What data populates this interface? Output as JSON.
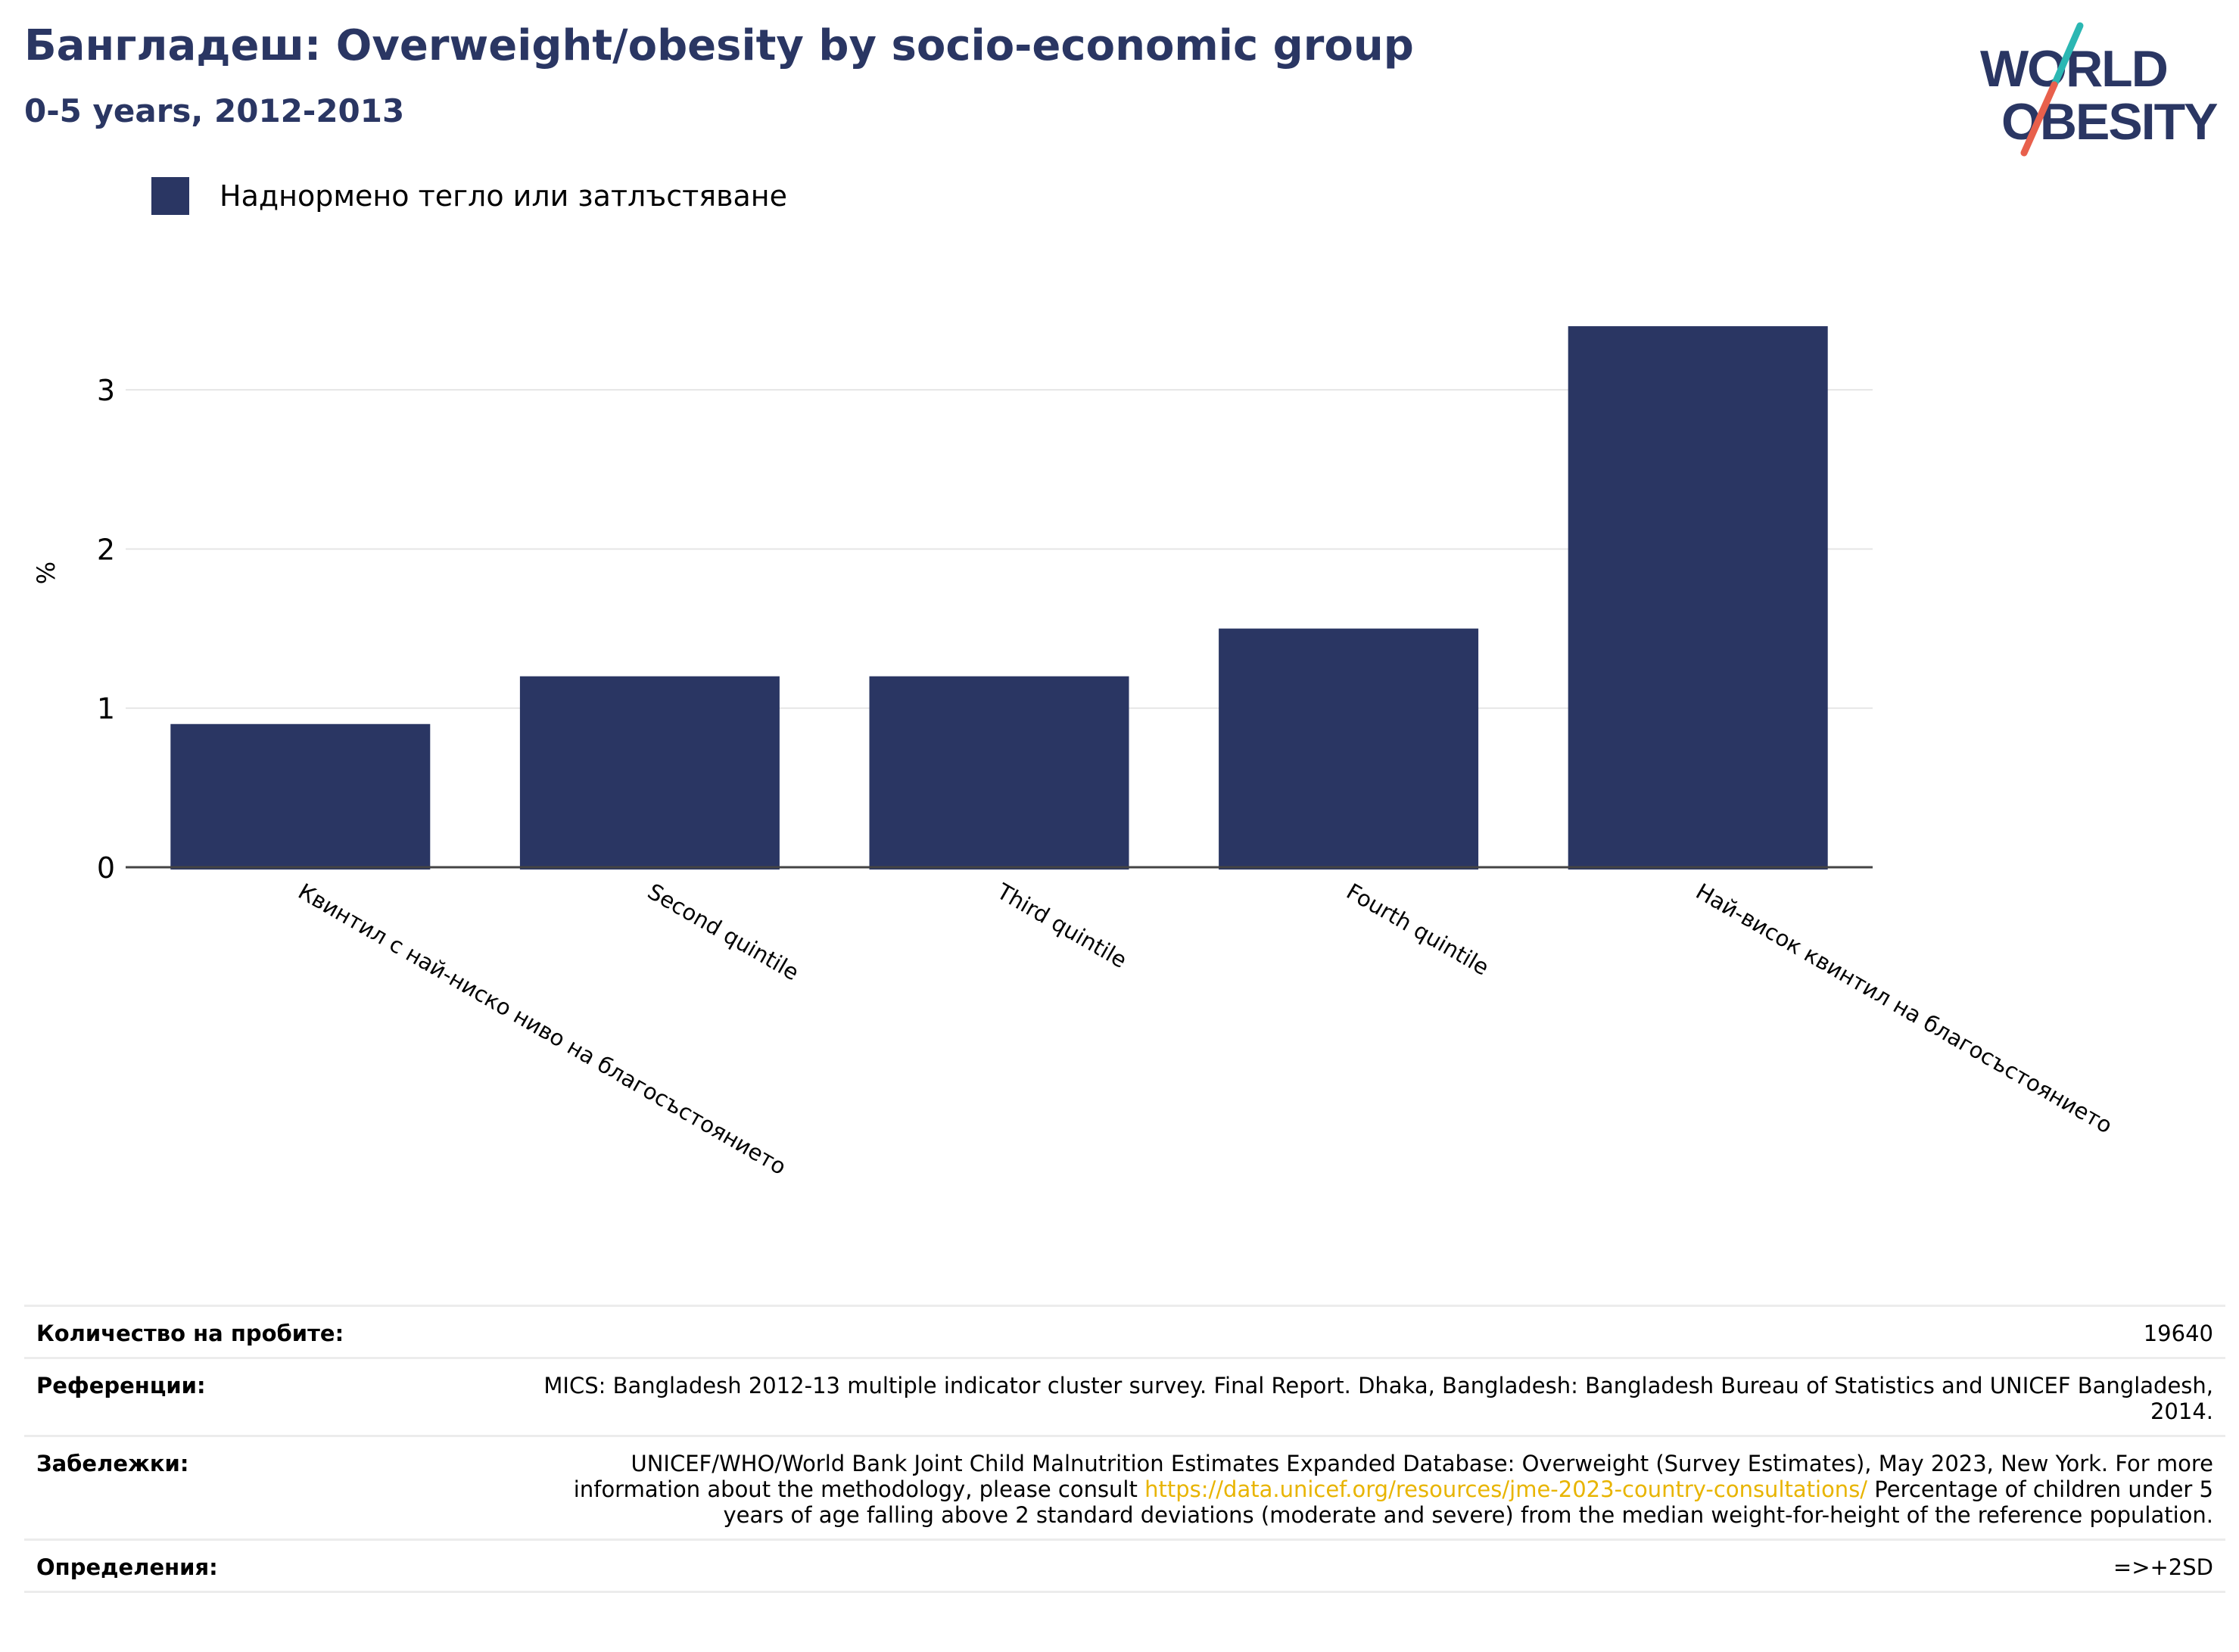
{
  "header": {
    "title": "Бангладеш: Overweight/obesity by socio-economic group",
    "subtitle": "0-5 years, 2012-2013"
  },
  "logo": {
    "line1": "WORLD",
    "line2": "OBESITY",
    "colors": {
      "text": "#2a3663",
      "slash_top": "#2bb7b3",
      "slash_bottom": "#e8604c"
    }
  },
  "legend": {
    "label": "Наднормено тегло или затлъстяване",
    "color": "#2a3663"
  },
  "chart_data": {
    "type": "bar",
    "categories": [
      "Квинтил с най-ниско ниво на благосъстоянието",
      "Second quintile",
      "Third quintile",
      "Fourth quintile",
      "Най-висок квинтил на благосъстоянието"
    ],
    "series": [
      {
        "name": "Наднормено тегло или затлъстяване",
        "values": [
          0.9,
          1.2,
          1.2,
          1.5,
          3.4
        ]
      }
    ],
    "ylabel": "%",
    "ylim": [
      0,
      3.6
    ],
    "yticks": [
      0,
      1,
      2,
      3
    ],
    "grid": true,
    "bar_color": "#2a3663"
  },
  "info": [
    {
      "key": "Количество на пробите:",
      "value": "19640"
    },
    {
      "key": "Референции:",
      "value": "MICS: Bangladesh 2012-13 multiple indicator cluster survey. Final Report. Dhaka, Bangladesh: Bangladesh Bureau of Statistics and UNICEF Bangladesh, 2014."
    },
    {
      "key": "Забележки:",
      "value_before": "UNICEF/WHO/World Bank Joint Child Malnutrition Estimates Expanded Database: Overweight (Survey Estimates), May 2023, New York. For more information about the methodology, please consult ",
      "link": "https://data.unicef.org/resources/jme-2023-country-consultations/",
      "value_after": " Percentage of children under 5 years of age falling above 2 standard deviations (moderate and severe) from the median weight-for-height of the reference population."
    },
    {
      "key": "Определения:",
      "value": "=>+2SD"
    }
  ]
}
